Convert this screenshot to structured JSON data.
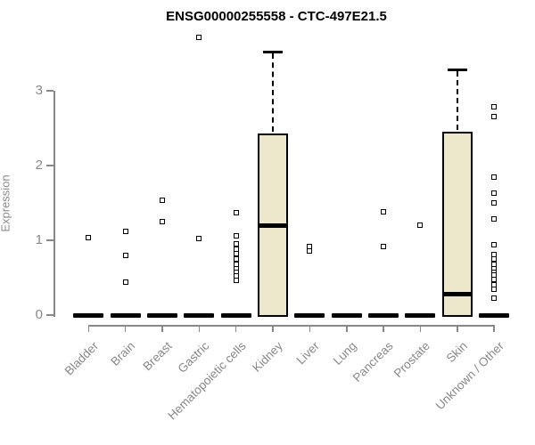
{
  "title": "ENSG00000255558 - CTC-497E21.5",
  "y_axis": {
    "label": "Expression",
    "ticks": [
      0,
      1,
      2,
      3
    ]
  },
  "colors": {
    "box_fill": "#EDE7CC",
    "box_border": "#000000",
    "axis": "#888888",
    "label_gray": "#8a8a8a",
    "title_color": "#000000"
  },
  "chart_data": {
    "type": "boxplot",
    "title": "ENSG00000255558 - CTC-497E21.5",
    "xlabel": "",
    "ylabel": "Expression",
    "ylim": [
      0,
      3.8
    ],
    "yticks": [
      0,
      1,
      2,
      3
    ],
    "grid": false,
    "categories": [
      "Bladder",
      "Brain",
      "Breast",
      "Gastric",
      "Hematopoietic cells",
      "Kidney",
      "Liver",
      "Lung",
      "Pancreas",
      "Prostate",
      "Skin",
      "Unknown / Other"
    ],
    "groups": [
      {
        "name": "Bladder",
        "q1": 0,
        "median": 0,
        "q3": 0,
        "whisker_low": 0,
        "whisker_high": 0,
        "outliers": [
          1.03
        ]
      },
      {
        "name": "Brain",
        "q1": 0,
        "median": 0,
        "q3": 0,
        "whisker_low": 0,
        "whisker_high": 0,
        "outliers": [
          1.12,
          0.8,
          0.44
        ]
      },
      {
        "name": "Breast",
        "q1": 0,
        "median": 0,
        "q3": 0,
        "whisker_low": 0,
        "whisker_high": 0,
        "outliers": [
          1.54,
          1.25
        ]
      },
      {
        "name": "Gastric",
        "q1": 0,
        "median": 0,
        "q3": 0,
        "whisker_low": 0,
        "whisker_high": 0,
        "outliers": [
          3.71,
          1.02
        ]
      },
      {
        "name": "Hematopoietic cells",
        "q1": 0,
        "median": 0,
        "q3": 0,
        "whisker_low": 0,
        "whisker_high": 0,
        "outliers": [
          1.37,
          1.06,
          0.95,
          0.88,
          0.82,
          0.75,
          0.68,
          0.62,
          0.57,
          0.52,
          0.46
        ]
      },
      {
        "name": "Kidney",
        "q1": 0,
        "median": 1.2,
        "q3": 2.43,
        "whisker_low": 0,
        "whisker_high": 3.52,
        "outliers": []
      },
      {
        "name": "Liver",
        "q1": 0,
        "median": 0,
        "q3": 0,
        "whisker_low": 0,
        "whisker_high": 0,
        "outliers": [
          0.92,
          0.86
        ]
      },
      {
        "name": "Lung",
        "q1": 0,
        "median": 0,
        "q3": 0,
        "whisker_low": 0,
        "whisker_high": 0,
        "outliers": []
      },
      {
        "name": "Pancreas",
        "q1": 0,
        "median": 0,
        "q3": 0,
        "whisker_low": 0,
        "whisker_high": 0,
        "outliers": [
          1.38,
          0.92
        ]
      },
      {
        "name": "Prostate",
        "q1": 0,
        "median": 0,
        "q3": 0,
        "whisker_low": 0,
        "whisker_high": 0,
        "outliers": [
          1.2
        ]
      },
      {
        "name": "Skin",
        "q1": 0,
        "median": 0.28,
        "q3": 2.45,
        "whisker_low": 0,
        "whisker_high": 3.28,
        "outliers": []
      },
      {
        "name": "Unknown / Other",
        "q1": 0,
        "median": 0,
        "q3": 0,
        "whisker_low": 0,
        "whisker_high": 0,
        "outliers": [
          2.78,
          2.65,
          1.85,
          1.63,
          1.5,
          1.28,
          0.94,
          0.81,
          0.75,
          0.68,
          0.62,
          0.57,
          0.53,
          0.48,
          0.4,
          0.35,
          0.23
        ]
      }
    ]
  }
}
